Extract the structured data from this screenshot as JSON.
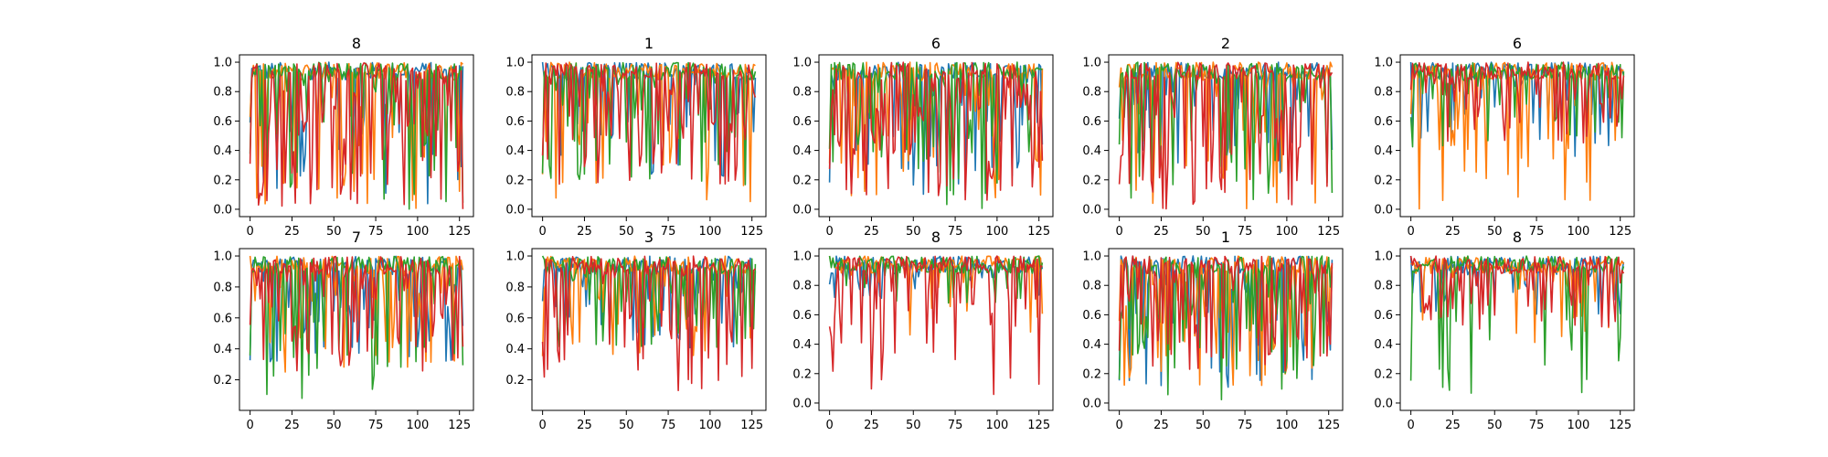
{
  "chart_data": {
    "type": "line",
    "layout": "2x5 small multiples",
    "series_colors": [
      "#1f77b4",
      "#ff7f0e",
      "#2ca02c",
      "#d62728"
    ],
    "xlim": [
      0,
      127
    ],
    "xticks": [
      0,
      25,
      50,
      75,
      100,
      125
    ],
    "grid": false,
    "legend": "none",
    "panels": [
      {
        "title": "8",
        "ylim": [
          0.0,
          1.0
        ],
        "yticks": [
          "0.0",
          "0.2",
          "0.4",
          "0.6",
          "0.8",
          "1.0"
        ]
      },
      {
        "title": "1",
        "ylim": [
          0.0,
          1.0
        ],
        "yticks": [
          "0.0",
          "0.2",
          "0.4",
          "0.6",
          "0.8",
          "1.0"
        ]
      },
      {
        "title": "6",
        "ylim": [
          0.0,
          1.0
        ],
        "yticks": [
          "0.0",
          "0.2",
          "0.4",
          "0.6",
          "0.8",
          "1.0"
        ]
      },
      {
        "title": "2",
        "ylim": [
          0.0,
          1.0
        ],
        "yticks": [
          "0.0",
          "0.2",
          "0.4",
          "0.6",
          "0.8",
          "1.0"
        ]
      },
      {
        "title": "6",
        "ylim": [
          0.0,
          1.0
        ],
        "yticks": [
          "0.0",
          "0.2",
          "0.4",
          "0.6",
          "0.8",
          "1.0"
        ]
      },
      {
        "title": "7",
        "ylim": [
          0.05,
          1.0
        ],
        "yticks": [
          "0.2",
          "0.4",
          "0.6",
          "0.8",
          "1.0"
        ]
      },
      {
        "title": "3",
        "ylim": [
          0.05,
          1.0
        ],
        "yticks": [
          "0.2",
          "0.4",
          "0.6",
          "0.8",
          "1.0"
        ]
      },
      {
        "title": "8",
        "ylim": [
          0.0,
          1.0
        ],
        "yticks": [
          "0.0",
          "0.2",
          "0.4",
          "0.6",
          "0.8",
          "1.0"
        ]
      },
      {
        "title": "1",
        "ylim": [
          0.0,
          1.0
        ],
        "yticks": [
          "0.0",
          "0.2",
          "0.4",
          "0.6",
          "0.8",
          "1.0"
        ]
      },
      {
        "title": "8",
        "ylim": [
          0.0,
          1.0
        ],
        "yticks": [
          "0.0",
          "0.2",
          "0.4",
          "0.6",
          "0.8",
          "1.0"
        ]
      }
    ]
  }
}
